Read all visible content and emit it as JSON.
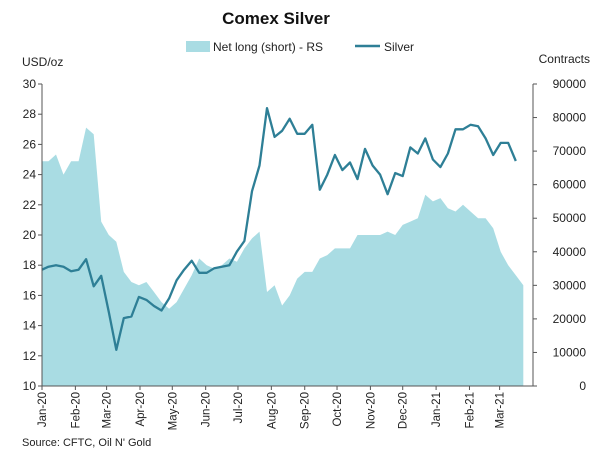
{
  "chart_data": {
    "type": "line",
    "title": "Comex Silver",
    "source": "Source: CFTC, Oil N' Gold",
    "left_axis_unit": "USD/oz",
    "right_axis_unit": "Contracts",
    "left_axis": {
      "min": 10,
      "max": 30,
      "step": 2
    },
    "right_axis": {
      "min": 0,
      "max": 90000,
      "step": 10000
    },
    "x_range": [
      "2020-01-01",
      "2021-04-01"
    ],
    "x_tick_labels": [
      "Jan-20",
      "Feb-20",
      "Mar-20",
      "Apr-20",
      "May-20",
      "Jun-20",
      "Jul-20",
      "Aug-20",
      "Sep-20",
      "Oct-20",
      "Nov-20",
      "Dec-20",
      "Jan-21",
      "Feb-21",
      "Mar-21"
    ],
    "x_tick_dates": [
      "2020-01-01",
      "2020-02-01",
      "2020-03-01",
      "2020-04-01",
      "2020-05-01",
      "2020-06-01",
      "2020-07-01",
      "2020-08-01",
      "2020-09-01",
      "2020-10-01",
      "2020-11-01",
      "2020-12-01",
      "2021-01-01",
      "2021-02-01",
      "2021-03-01"
    ],
    "grid": false,
    "legend_position": "top-center",
    "series": [
      {
        "name": "Net long (short) - RS",
        "type": "area",
        "axis": "right",
        "color": "#a9dce3",
        "points": [
          [
            "2020-01-01",
            67000
          ],
          [
            "2020-01-07",
            67000
          ],
          [
            "2020-01-14",
            69000
          ],
          [
            "2020-01-21",
            63000
          ],
          [
            "2020-01-28",
            67000
          ],
          [
            "2020-02-04",
            67000
          ],
          [
            "2020-02-11",
            77000
          ],
          [
            "2020-02-18",
            75000
          ],
          [
            "2020-02-25",
            49000
          ],
          [
            "2020-03-03",
            45000
          ],
          [
            "2020-03-10",
            43000
          ],
          [
            "2020-03-17",
            34000
          ],
          [
            "2020-03-24",
            31000
          ],
          [
            "2020-03-31",
            30000
          ],
          [
            "2020-04-07",
            31000
          ],
          [
            "2020-04-14",
            28000
          ],
          [
            "2020-04-21",
            25000
          ],
          [
            "2020-04-28",
            23000
          ],
          [
            "2020-05-05",
            25000
          ],
          [
            "2020-05-12",
            29000
          ],
          [
            "2020-05-19",
            33000
          ],
          [
            "2020-05-26",
            38000
          ],
          [
            "2020-06-02",
            36000
          ],
          [
            "2020-06-09",
            35000
          ],
          [
            "2020-06-16",
            36000
          ],
          [
            "2020-06-23",
            38000
          ],
          [
            "2020-06-30",
            37000
          ],
          [
            "2020-07-07",
            41000
          ],
          [
            "2020-07-14",
            44000
          ],
          [
            "2020-07-21",
            46000
          ],
          [
            "2020-07-28",
            28000
          ],
          [
            "2020-08-04",
            30000
          ],
          [
            "2020-08-11",
            24000
          ],
          [
            "2020-08-18",
            27000
          ],
          [
            "2020-08-25",
            32000
          ],
          [
            "2020-09-01",
            34000
          ],
          [
            "2020-09-08",
            34000
          ],
          [
            "2020-09-15",
            38000
          ],
          [
            "2020-09-22",
            39000
          ],
          [
            "2020-09-29",
            41000
          ],
          [
            "2020-10-06",
            41000
          ],
          [
            "2020-10-13",
            41000
          ],
          [
            "2020-10-20",
            45000
          ],
          [
            "2020-10-27",
            45000
          ],
          [
            "2020-11-03",
            45000
          ],
          [
            "2020-11-10",
            45000
          ],
          [
            "2020-11-17",
            46000
          ],
          [
            "2020-11-24",
            45000
          ],
          [
            "2020-12-01",
            48000
          ],
          [
            "2020-12-08",
            49000
          ],
          [
            "2020-12-15",
            50000
          ],
          [
            "2020-12-22",
            57000
          ],
          [
            "2020-12-29",
            55000
          ],
          [
            "2021-01-05",
            56000
          ],
          [
            "2021-01-12",
            53000
          ],
          [
            "2021-01-19",
            52000
          ],
          [
            "2021-01-26",
            54000
          ],
          [
            "2021-02-02",
            52000
          ],
          [
            "2021-02-09",
            50000
          ],
          [
            "2021-02-16",
            50000
          ],
          [
            "2021-02-23",
            47000
          ],
          [
            "2021-03-02",
            40000
          ],
          [
            "2021-03-09",
            36000
          ],
          [
            "2021-03-16",
            33000
          ],
          [
            "2021-03-23",
            30000
          ]
        ]
      },
      {
        "name": "Silver",
        "type": "line",
        "axis": "left",
        "color": "#2e7f96",
        "points": [
          [
            "2020-01-01",
            17.7
          ],
          [
            "2020-01-07",
            17.9
          ],
          [
            "2020-01-14",
            18.0
          ],
          [
            "2020-01-21",
            17.9
          ],
          [
            "2020-01-28",
            17.6
          ],
          [
            "2020-02-04",
            17.7
          ],
          [
            "2020-02-11",
            18.4
          ],
          [
            "2020-02-18",
            16.6
          ],
          [
            "2020-02-25",
            17.3
          ],
          [
            "2020-03-03",
            14.9
          ],
          [
            "2020-03-10",
            12.4
          ],
          [
            "2020-03-17",
            14.5
          ],
          [
            "2020-03-24",
            14.6
          ],
          [
            "2020-03-31",
            15.9
          ],
          [
            "2020-04-07",
            15.7
          ],
          [
            "2020-04-14",
            15.3
          ],
          [
            "2020-04-21",
            15.0
          ],
          [
            "2020-04-28",
            15.8
          ],
          [
            "2020-05-05",
            17.0
          ],
          [
            "2020-05-12",
            17.7
          ],
          [
            "2020-05-19",
            18.3
          ],
          [
            "2020-05-26",
            17.5
          ],
          [
            "2020-06-02",
            17.5
          ],
          [
            "2020-06-09",
            17.8
          ],
          [
            "2020-06-16",
            17.9
          ],
          [
            "2020-06-23",
            18.0
          ],
          [
            "2020-06-30",
            18.9
          ],
          [
            "2020-07-07",
            19.6
          ],
          [
            "2020-07-14",
            22.9
          ],
          [
            "2020-07-21",
            24.6
          ],
          [
            "2020-07-28",
            28.4
          ],
          [
            "2020-08-04",
            26.5
          ],
          [
            "2020-08-11",
            26.9
          ],
          [
            "2020-08-18",
            27.7
          ],
          [
            "2020-08-25",
            26.7
          ],
          [
            "2020-09-01",
            26.7
          ],
          [
            "2020-09-08",
            27.3
          ],
          [
            "2020-09-15",
            23.0
          ],
          [
            "2020-09-22",
            24.0
          ],
          [
            "2020-09-29",
            25.3
          ],
          [
            "2020-10-06",
            24.3
          ],
          [
            "2020-10-13",
            24.8
          ],
          [
            "2020-10-20",
            23.7
          ],
          [
            "2020-10-27",
            25.7
          ],
          [
            "2020-11-03",
            24.6
          ],
          [
            "2020-11-10",
            24.0
          ],
          [
            "2020-11-17",
            22.7
          ],
          [
            "2020-11-24",
            24.1
          ],
          [
            "2020-12-01",
            23.9
          ],
          [
            "2020-12-08",
            25.8
          ],
          [
            "2020-12-15",
            25.4
          ],
          [
            "2020-12-22",
            26.4
          ],
          [
            "2020-12-29",
            25.0
          ],
          [
            "2021-01-05",
            24.5
          ],
          [
            "2021-01-12",
            25.4
          ],
          [
            "2021-01-19",
            27.0
          ],
          [
            "2021-01-26",
            27.0
          ],
          [
            "2021-02-02",
            27.3
          ],
          [
            "2021-02-09",
            27.2
          ],
          [
            "2021-02-16",
            26.4
          ],
          [
            "2021-02-23",
            25.3
          ],
          [
            "2021-03-02",
            26.1
          ],
          [
            "2021-03-09",
            26.1
          ],
          [
            "2021-03-16",
            24.9
          ]
        ]
      }
    ]
  }
}
